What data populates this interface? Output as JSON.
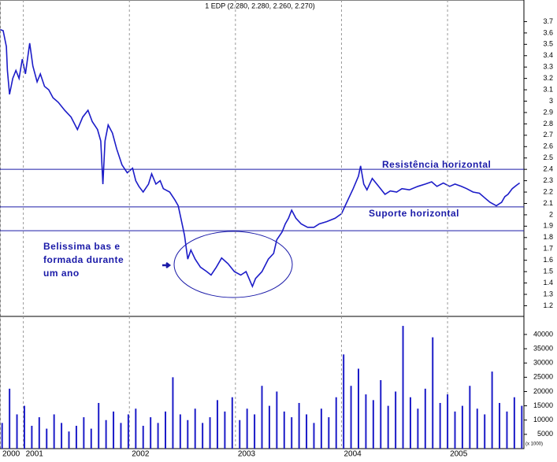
{
  "chart_data": [
    {
      "type": "line",
      "title": "1 EDP (2.280, 2.280, 2.260, 2.270)",
      "x": [
        2000.78,
        2000.81,
        2000.84,
        2000.85,
        2000.87,
        2000.9,
        2000.93,
        2000.96,
        2000.99,
        2001.02,
        2001.06,
        2001.09,
        2001.13,
        2001.16,
        2001.2,
        2001.24,
        2001.28,
        2001.33,
        2001.39,
        2001.45,
        2001.51,
        2001.56,
        2001.61,
        2001.65,
        2001.7,
        2001.73,
        2001.75,
        2001.77,
        2001.8,
        2001.84,
        2001.88,
        2001.93,
        2001.98,
        2002.03,
        2002.06,
        2002.09,
        2002.13,
        2002.18,
        2002.21,
        2002.25,
        2002.29,
        2002.32,
        2002.38,
        2002.43,
        2002.46,
        2002.49,
        2002.52,
        2002.55,
        2002.58,
        2002.62,
        2002.67,
        2002.73,
        2002.77,
        2002.82,
        2002.87,
        2002.93,
        2002.99,
        2003.05,
        2003.1,
        2003.16,
        2003.19,
        2003.25,
        2003.31,
        2003.36,
        2003.39,
        2003.44,
        2003.47,
        2003.5,
        2003.53,
        2003.57,
        2003.62,
        2003.68,
        2003.74,
        2003.79,
        2003.86,
        2003.94,
        2004,
        2004.05,
        2004.11,
        2004.16,
        2004.18,
        2004.21,
        2004.24,
        2004.29,
        2004.35,
        2004.41,
        2004.46,
        2004.52,
        2004.57,
        2004.64,
        2004.72,
        2004.79,
        2004.85,
        2004.9,
        2004.96,
        2005.02,
        2005.07,
        2005.13,
        2005.18,
        2005.24,
        2005.3,
        2005.35,
        2005.4,
        2005.46,
        2005.51,
        2005.54,
        2005.57,
        2005.61,
        2005.65,
        2005.68
      ],
      "series": [
        {
          "color": "#1c1cc8",
          "values": [
            3.63,
            3.62,
            3.48,
            3.27,
            3.06,
            3.2,
            3.27,
            3.2,
            3.37,
            3.24,
            3.51,
            3.31,
            3.17,
            3.24,
            3.13,
            3.1,
            3.03,
            2.99,
            2.92,
            2.86,
            2.75,
            2.86,
            2.92,
            2.82,
            2.75,
            2.65,
            2.27,
            2.65,
            2.79,
            2.72,
            2.58,
            2.44,
            2.37,
            2.41,
            2.3,
            2.25,
            2.2,
            2.27,
            2.36,
            2.27,
            2.3,
            2.23,
            2.2,
            2.13,
            2.08,
            1.95,
            1.82,
            1.61,
            1.69,
            1.61,
            1.54,
            1.5,
            1.47,
            1.54,
            1.62,
            1.57,
            1.5,
            1.47,
            1.5,
            1.37,
            1.44,
            1.5,
            1.61,
            1.66,
            1.78,
            1.85,
            1.92,
            1.97,
            2.04,
            1.97,
            1.92,
            1.89,
            1.89,
            1.92,
            1.94,
            1.97,
            2.01,
            2.11,
            2.23,
            2.34,
            2.43,
            2.27,
            2.22,
            2.32,
            2.25,
            2.18,
            2.21,
            2.2,
            2.23,
            2.22,
            2.25,
            2.27,
            2.29,
            2.25,
            2.28,
            2.25,
            2.27,
            2.25,
            2.23,
            2.2,
            2.19,
            2.15,
            2.11,
            2.08,
            2.11,
            2.16,
            2.18,
            2.23,
            2.26,
            2.28
          ]
        }
      ],
      "xlim": [
        2000.78,
        2005.72
      ],
      "ylim": [
        1.12,
        3.89
      ],
      "yticks": [
        1.2,
        1.3,
        1.4,
        1.5,
        1.6,
        1.7,
        1.8,
        1.9,
        2,
        2.1,
        2.2,
        2.3,
        2.4,
        2.5,
        2.6,
        2.7,
        2.8,
        2.9,
        3,
        3.1,
        3.2,
        3.3,
        3.4,
        3.5,
        3.6,
        3.7
      ],
      "hlines": [
        2.4,
        2.07,
        1.86
      ],
      "annotations": [
        "Resistência horizontal",
        "Suporte horizontal",
        "Belissima bas e",
        "formada durante",
        "um ano"
      ]
    },
    {
      "type": "bar",
      "x": [
        2000.8,
        2000.87,
        2000.94,
        2001.01,
        2001.08,
        2001.15,
        2001.22,
        2001.29,
        2001.36,
        2001.43,
        2001.5,
        2001.57,
        2001.64,
        2001.71,
        2001.78,
        2001.85,
        2001.92,
        2001.99,
        2002.06,
        2002.13,
        2002.2,
        2002.27,
        2002.34,
        2002.41,
        2002.48,
        2002.55,
        2002.62,
        2002.69,
        2002.76,
        2002.83,
        2002.9,
        2002.97,
        2003.04,
        2003.11,
        2003.18,
        2003.25,
        2003.32,
        2003.39,
        2003.46,
        2003.53,
        2003.6,
        2003.67,
        2003.74,
        2003.81,
        2003.88,
        2003.95,
        2004.02,
        2004.09,
        2004.16,
        2004.23,
        2004.3,
        2004.37,
        2004.44,
        2004.51,
        2004.58,
        2004.65,
        2004.72,
        2004.79,
        2004.86,
        2004.93,
        2005,
        2005.07,
        2005.14,
        2005.21,
        2005.28,
        2005.35,
        2005.42,
        2005.49,
        2005.56,
        2005.63,
        2005.7
      ],
      "values": [
        9000,
        21000,
        12000,
        15000,
        8000,
        11000,
        7000,
        12000,
        9000,
        6000,
        8000,
        11000,
        7000,
        16000,
        10000,
        13000,
        9000,
        12000,
        14000,
        8000,
        11000,
        9000,
        13000,
        25000,
        12000,
        10000,
        14000,
        9000,
        11000,
        17000,
        13000,
        18000,
        10000,
        14000,
        12000,
        22000,
        15000,
        20000,
        13000,
        11000,
        16000,
        12000,
        9000,
        14000,
        11000,
        18000,
        33000,
        22000,
        28000,
        19000,
        17000,
        24000,
        15000,
        20000,
        43000,
        18000,
        14000,
        21000,
        39000,
        16000,
        19000,
        13000,
        15000,
        22000,
        14000,
        12000,
        27000,
        16000,
        13000,
        18000,
        15000
      ],
      "color": "#1c1cc8",
      "xlim": [
        2000.78,
        2005.72
      ],
      "xticks": [
        {
          "value": 2000.78,
          "label": "2000"
        },
        2001,
        2002,
        2003,
        2004,
        2005
      ],
      "ylim": [
        0,
        45500
      ],
      "yticks": [
        5000,
        10000,
        15000,
        20000,
        25000,
        30000,
        35000,
        40000
      ],
      "unit_label": "(x 1000)"
    }
  ]
}
